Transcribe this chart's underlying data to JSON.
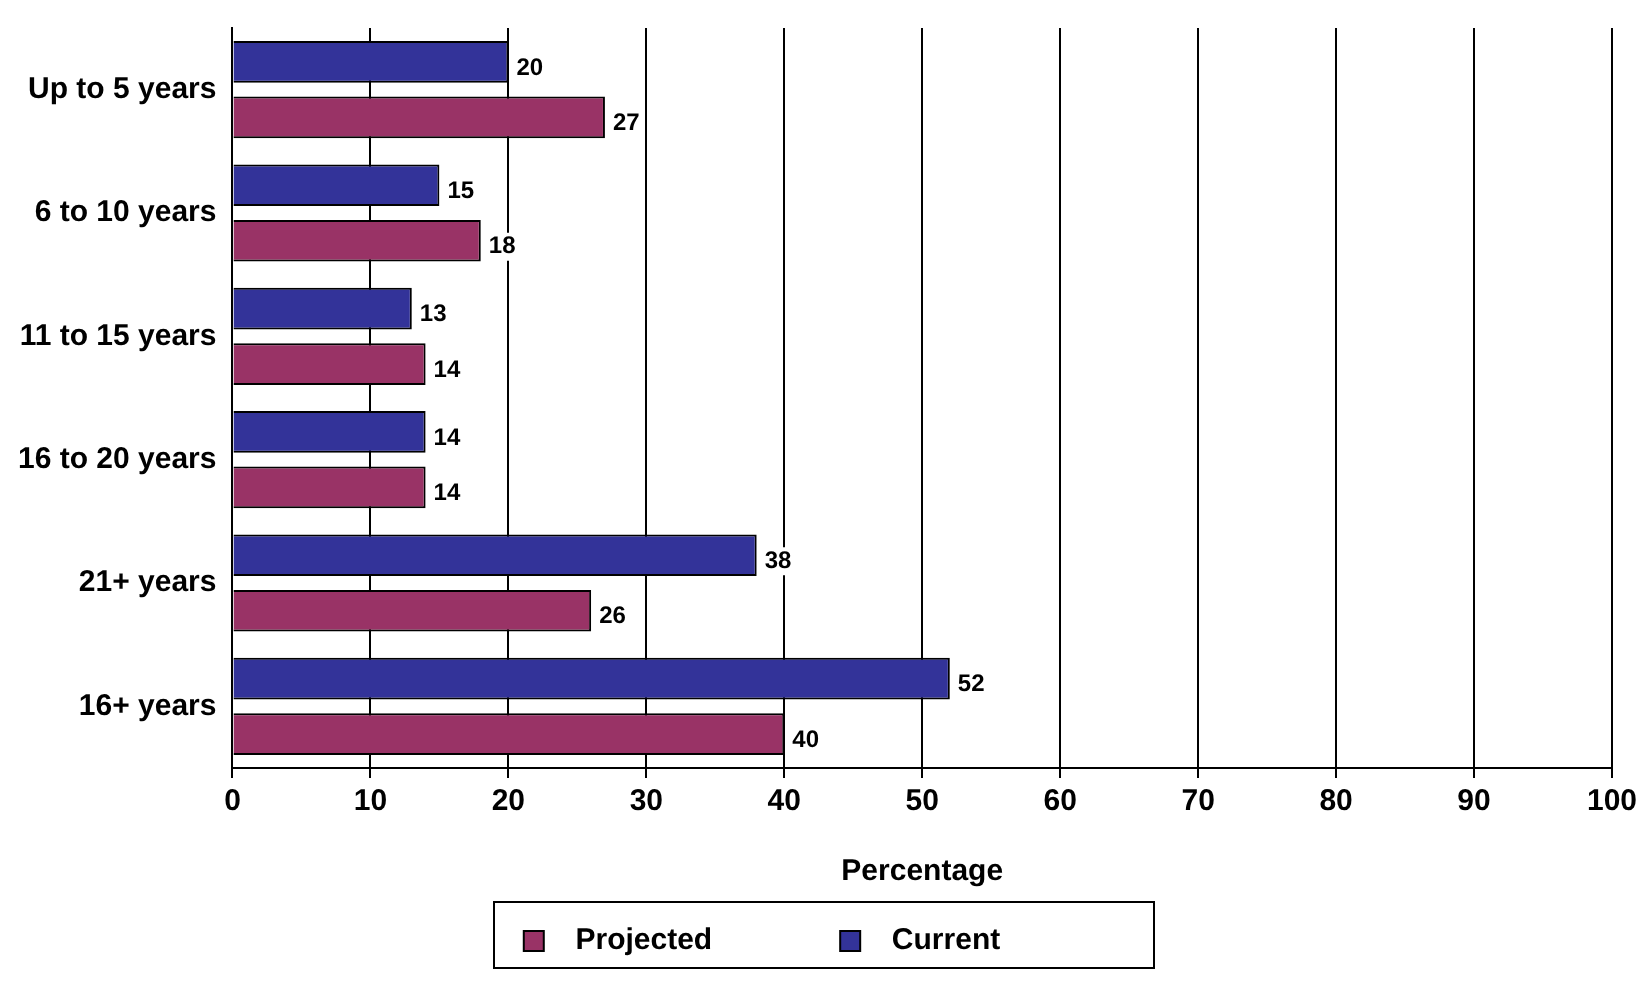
{
  "chart_data": {
    "type": "bar",
    "orientation": "horizontal",
    "xlabel": "Percentage",
    "categories": [
      "Up to 5 years",
      "6 to 10 years",
      "11 to 15 years",
      "16 to 20 years",
      "21+ years",
      "16+ years"
    ],
    "series": [
      {
        "name": "Current",
        "color": "#333399",
        "values": [
          20,
          15,
          13,
          14,
          38,
          52
        ]
      },
      {
        "name": "Projected",
        "color": "#993366",
        "values": [
          27,
          18,
          14,
          14,
          26,
          40
        ]
      }
    ],
    "xlim": [
      0,
      100
    ],
    "xticks": [
      0,
      10,
      20,
      30,
      40,
      50,
      60,
      70,
      80,
      90,
      100
    ],
    "grid": "x",
    "legend": "bottom",
    "data_labels": true
  }
}
